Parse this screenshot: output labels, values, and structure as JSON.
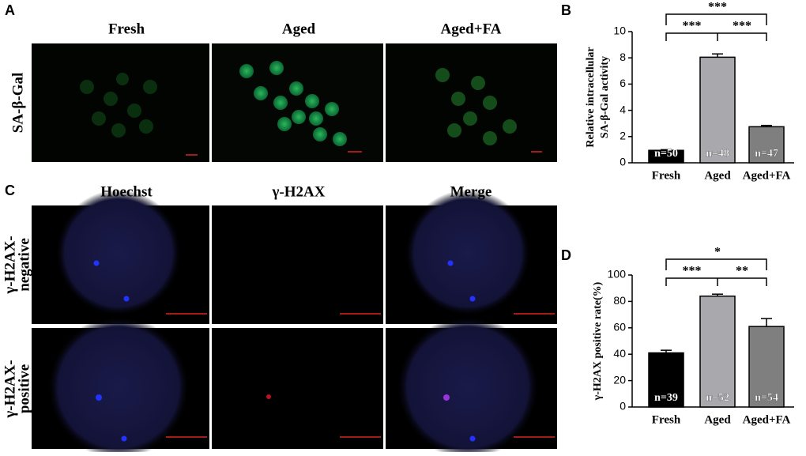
{
  "panel_letters": [
    "A",
    "B",
    "C",
    "D"
  ],
  "panel_a": {
    "columns": [
      "Fresh",
      "Aged",
      "Aged+FA"
    ],
    "row_label": "SA-β-Gal"
  },
  "panel_c": {
    "columns": [
      "Hoechst",
      "γ-H2AX",
      "Merge"
    ],
    "rows": [
      [
        "γ-H2AX-",
        "negative"
      ],
      [
        "γ-H2AX-",
        "positive"
      ]
    ]
  },
  "chart_data": [
    {
      "type": "bar",
      "ylabel": [
        "Relative intracellular",
        "SA-β-Gal activity"
      ],
      "categories": [
        "Fresh",
        "Aged",
        "Aged+FA"
      ],
      "values": [
        0.95,
        8.05,
        2.75
      ],
      "errors": [
        0.05,
        0.25,
        0.1
      ],
      "bar_labels": [
        "n=50",
        "n=48",
        "n=47"
      ],
      "colors": [
        "#000000",
        "#a9a9ad",
        "#7f7f7f"
      ],
      "significance": [
        "***",
        "***",
        "***"
      ],
      "ylim": [
        0,
        10
      ],
      "yticks": [
        0,
        2,
        4,
        6,
        8,
        10
      ]
    },
    {
      "type": "bar",
      "ylabel": [
        "γ-H2AX positive rate(%)"
      ],
      "categories": [
        "Fresh",
        "Aged",
        "Aged+FA"
      ],
      "values": [
        41,
        84,
        61
      ],
      "errors": [
        2,
        1.5,
        6
      ],
      "bar_labels": [
        "n=39",
        "n=52",
        "n=54"
      ],
      "colors": [
        "#000000",
        "#a9a9ad",
        "#7f7f7f"
      ],
      "significance": [
        "*",
        "***",
        "**"
      ],
      "ylim": [
        0,
        100
      ],
      "yticks": [
        0,
        20,
        40,
        60,
        80,
        100
      ]
    }
  ]
}
